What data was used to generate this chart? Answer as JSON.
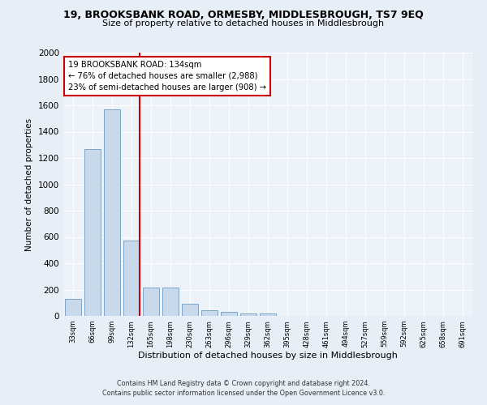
{
  "title1": "19, BROOKSBANK ROAD, ORMESBY, MIDDLESBROUGH, TS7 9EQ",
  "title2": "Size of property relative to detached houses in Middlesbrough",
  "xlabel": "Distribution of detached houses by size in Middlesbrough",
  "ylabel": "Number of detached properties",
  "categories": [
    "33sqm",
    "66sqm",
    "99sqm",
    "132sqm",
    "165sqm",
    "198sqm",
    "230sqm",
    "263sqm",
    "296sqm",
    "329sqm",
    "362sqm",
    "395sqm",
    "428sqm",
    "461sqm",
    "494sqm",
    "527sqm",
    "559sqm",
    "592sqm",
    "625sqm",
    "658sqm",
    "691sqm"
  ],
  "values": [
    130,
    1270,
    1570,
    570,
    215,
    215,
    95,
    45,
    30,
    20,
    20,
    0,
    0,
    0,
    0,
    0,
    0,
    0,
    0,
    0,
    0
  ],
  "bar_color": "#c9d9ec",
  "bar_edge_color": "#5a8ab5",
  "highlight_index": 3,
  "highlight_line_color": "#cc0000",
  "annotation_line1": "19 BROOKSBANK ROAD: 134sqm",
  "annotation_line2": "← 76% of detached houses are smaller (2,988)",
  "annotation_line3": "23% of semi-detached houses are larger (908) →",
  "annotation_box_color": "#ffffff",
  "annotation_box_edge": "#cc0000",
  "ylim": [
    0,
    2000
  ],
  "yticks": [
    0,
    200,
    400,
    600,
    800,
    1000,
    1200,
    1400,
    1600,
    1800,
    2000
  ],
  "footer1": "Contains HM Land Registry data © Crown copyright and database right 2024.",
  "footer2": "Contains public sector information licensed under the Open Government Licence v3.0.",
  "bg_color": "#e8eef5",
  "plot_bg_color": "#edf2f9"
}
